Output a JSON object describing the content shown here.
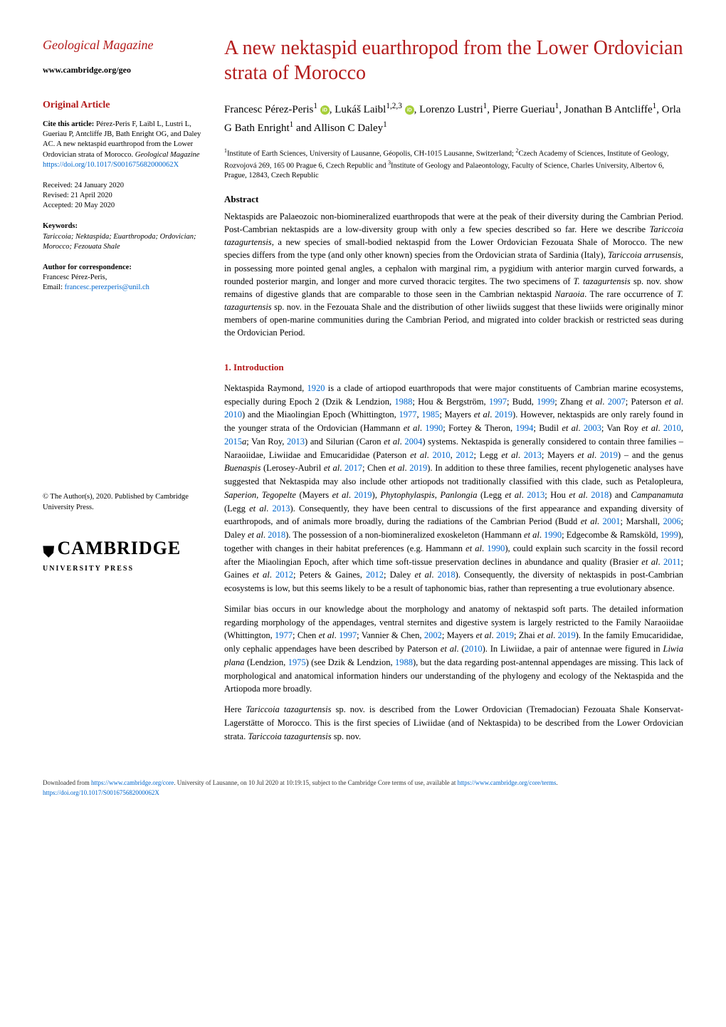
{
  "journal": {
    "title": "Geological Magazine",
    "url": "www.cambridge.org/geo"
  },
  "article_type": "Original Article",
  "citation": {
    "label": "Cite this article:",
    "text": "Pérez-Peris F, Laibl L, Lustri L, Gueriau P, Antcliffe JB, Bath Enright OG, and Daley AC. A new nektaspid euarthropod from the Lower Ordovician strata of Morocco.",
    "journal_italic": "Geological Magazine",
    "doi_link": "https://doi.org/10.1017/S001675682000062X"
  },
  "dates": {
    "received": "Received: 24 January 2020",
    "revised": "Revised: 21 April 2020",
    "accepted": "Accepted: 20 May 2020"
  },
  "keywords": {
    "label": "Keywords:",
    "text": "Tariccoia; Nektaspida; Euarthropoda; Ordovician; Morocco; Fezouata Shale"
  },
  "correspondence": {
    "label": "Author for correspondence:",
    "name": "Francesc Pérez-Peris,",
    "email_label": "Email: ",
    "email": "francesc.perezperis@unil.ch"
  },
  "copyright": "© The Author(s), 2020. Published by Cambridge University Press.",
  "publisher": {
    "name": "CAMBRIDGE",
    "sub": "UNIVERSITY PRESS"
  },
  "title": "A new nektaspid euarthropod from the Lower Ordovician strata of Morocco",
  "authors_html": "Francesc Pérez-Peris<sup>1</sup> <span class='orcid' data-name='orcid-icon' data-interactable='false'></span>, Lukáš Laibl<sup>1,2,3</sup> <span class='orcid' data-name='orcid-icon' data-interactable='false'></span>, Lorenzo Lustri<sup>1</sup>, Pierre Gueriau<sup>1</sup>, Jonathan B Antcliffe<sup>1</sup>, Orla G Bath Enright<sup>1</sup> and Allison C Daley<sup>1</sup>",
  "affiliations": "<sup>1</sup>Institute of Earth Sciences, University of Lausanne, Géopolis, CH-1015 Lausanne, Switzerland; <sup>2</sup>Czech Academy of Sciences, Institute of Geology, Rozvojová 269, 165 00 Prague 6, Czech Republic and <sup>3</sup>Institute of Geology and Palaeontology, Faculty of Science, Charles University, Albertov 6, Prague, 12843, Czech Republic",
  "abstract": {
    "heading": "Abstract",
    "text": "Nektaspids are Palaeozoic non-biomineralized euarthropods that were at the peak of their diversity during the Cambrian Period. Post-Cambrian nektaspids are a low-diversity group with only a few species described so far. Here we describe <span class='italic'>Tariccoia tazagurtensis</span>, a new species of small-bodied nektaspid from the Lower Ordovician Fezouata Shale of Morocco. The new species differs from the type (and only other known) species from the Ordovician strata of Sardinia (Italy), <span class='italic'>Tariccoia arrusensis</span>, in possessing more pointed genal angles, a cephalon with marginal rim, a pygidium with anterior margin curved forwards, a rounded posterior margin, and longer and more curved thoracic tergites. The two specimens of <span class='italic'>T. tazagurtensis</span> sp. nov. show remains of digestive glands that are comparable to those seen in the Cambrian nektaspid <span class='italic'>Naraoia</span>. The rare occurrence of <span class='italic'>T. tazagurtensis</span> sp. nov. in the Fezouata Shale and the distribution of other liwiids suggest that these liwiids were originally minor members of open-marine communities during the Cambrian Period, and migrated into colder brackish or restricted seas during the Ordovician Period."
  },
  "section1": {
    "heading": "1. Introduction",
    "para1": "Nektaspida Raymond, <span class='ref'>1920</span> is a clade of artiopod euarthropods that were major constituents of Cambrian marine ecosystems, especially during Epoch 2 (Dzik & Lendzion, <span class='ref'>1988</span>; Hou & Bergström, <span class='ref'>1997</span>; Budd, <span class='ref'>1999</span>; Zhang <span class='italic'>et al</span>. <span class='ref'>2007</span>; Paterson <span class='italic'>et al</span>. <span class='ref'>2010</span>) and the Miaolingian Epoch (Whittington, <span class='ref'>1977</span>, <span class='ref'>1985</span>; Mayers <span class='italic'>et al</span>. <span class='ref'>2019</span>). However, nektaspids are only rarely found in the younger strata of the Ordovician (Hammann <span class='italic'>et al</span>. <span class='ref'>1990</span>; Fortey & Theron, <span class='ref'>1994</span>; Budil <span class='italic'>et al</span>. <span class='ref'>2003</span>; Van Roy <span class='italic'>et al</span>. <span class='ref'>2010</span>, <span class='ref'>2015</span><span class='italic'>a</span>; Van Roy, <span class='ref'>2013</span>) and Silurian (Caron <span class='italic'>et al</span>. <span class='ref'>2004</span>) systems. Nektaspida is generally considered to contain three families – Naraoiidae, Liwiidae and Emucarididae (Paterson <span class='italic'>et al</span>. <span class='ref'>2010</span>, <span class='ref'>2012</span>; Legg <span class='italic'>et al</span>. <span class='ref'>2013</span>; Mayers <span class='italic'>et al</span>. <span class='ref'>2019</span>) – and the genus <span class='italic'>Buenaspis</span> (Lerosey-Aubril <span class='italic'>et al</span>. <span class='ref'>2017</span>; Chen <span class='italic'>et al</span>. <span class='ref'>2019</span>). In addition to these three families, recent phylogenetic analyses have suggested that Nektaspida may also include other artiopods not traditionally classified with this clade, such as Petalopleura, <span class='italic'>Saperion</span>, <span class='italic'>Tegopelte</span> (Mayers <span class='italic'>et al</span>. <span class='ref'>2019</span>), <span class='italic'>Phytophylaspis</span>, <span class='italic'>Panlongia</span> (Legg <span class='italic'>et al</span>. <span class='ref'>2013</span>; Hou <span class='italic'>et al</span>. <span class='ref'>2018</span>) and <span class='italic'>Campanamuta</span> (Legg <span class='italic'>et al</span>. <span class='ref'>2013</span>). Consequently, they have been central to discussions of the first appearance and expanding diversity of euarthropods, and of animals more broadly, during the radiations of the Cambrian Period (Budd <span class='italic'>et al</span>. <span class='ref'>2001</span>; Marshall, <span class='ref'>2006</span>; Daley <span class='italic'>et al</span>. <span class='ref'>2018</span>). The possession of a non-biomineralized exoskeleton (Hammann <span class='italic'>et al</span>. <span class='ref'>1990</span>; Edgecombe & Ramsköld, <span class='ref'>1999</span>), together with changes in their habitat preferences (e.g. Hammann <span class='italic'>et al</span>. <span class='ref'>1990</span>), could explain such scarcity in the fossil record after the Miaolingian Epoch, after which time soft-tissue preservation declines in abundance and quality (Brasier <span class='italic'>et al</span>. <span class='ref'>2011</span>; Gaines <span class='italic'>et al</span>. <span class='ref'>2012</span>; Peters & Gaines, <span class='ref'>2012</span>; Daley <span class='italic'>et al</span>. <span class='ref'>2018</span>). Consequently, the diversity of nektaspids in post-Cambrian ecosystems is low, but this seems likely to be a result of taphonomic bias, rather than representing a true evolutionary absence.",
    "para2": "Similar bias occurs in our knowledge about the morphology and anatomy of nektaspid soft parts. The detailed information regarding morphology of the appendages, ventral sternites and digestive system is largely restricted to the Family Naraoiidae (Whittington, <span class='ref'>1977</span>; Chen <span class='italic'>et al</span>. <span class='ref'>1997</span>; Vannier & Chen, <span class='ref'>2002</span>; Mayers <span class='italic'>et al</span>. <span class='ref'>2019</span>; Zhai <span class='italic'>et al</span>. <span class='ref'>2019</span>). In the family Emucarididae, only cephalic appendages have been described by Paterson <span class='italic'>et al</span>. (<span class='ref'>2010</span>). In Liwiidae, a pair of antennae were figured in <span class='italic'>Liwia plana</span> (Lendzion, <span class='ref'>1975</span>) (see Dzik & Lendzion, <span class='ref'>1988</span>), but the data regarding post-antennal appendages are missing. This lack of morphological and anatomical information hinders our understanding of the phylogeny and ecology of the Nektaspida and the Artiopoda more broadly.",
    "para3": "Here <span class='italic'>Tariccoia tazagurtensis</span> sp. nov. is described from the Lower Ordovician (Tremadocian) Fezouata Shale Konservat-Lagerstätte of Morocco. This is the first species of Liwiidae (and of Nektaspida) to be described from the Lower Ordovician strata. <span class='italic'>Tariccoia tazagurtensis</span> sp. nov."
  },
  "footer": {
    "text_prefix": "Downloaded from ",
    "link1": "https://www.cambridge.org/core",
    "text_mid": ". University of Lausanne, on 10 Jul 2020 at 10:19:15, subject to the Cambridge Core terms of use, available at ",
    "link2": "https://www.cambridge.org/core/terms",
    "text_suffix": ". ",
    "doi": "https://doi.org/10.1017/S001675682000062X"
  },
  "colors": {
    "accent": "#b31b1b",
    "link": "#0066cc"
  }
}
